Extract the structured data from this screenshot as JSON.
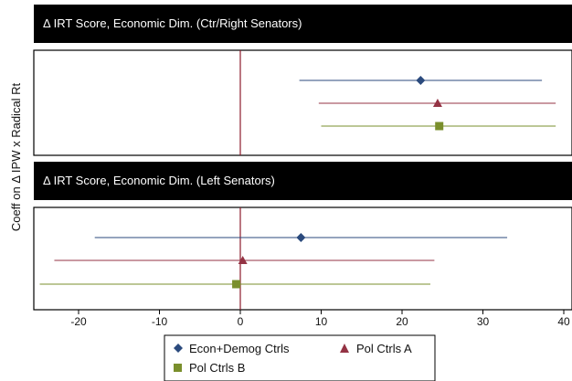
{
  "chart_data": {
    "type": "scatter",
    "ylabel": "Coeff on Δ IPW x Radical Rt",
    "xlim": [
      -25,
      41
    ],
    "xticks": [
      -20,
      -10,
      0,
      10,
      20,
      30,
      40
    ],
    "reference_line_x": 0,
    "grid": false,
    "legend_position": "bottom",
    "colors": {
      "line": "#8b1a2b",
      "frame": "#000000",
      "header": "#000000"
    },
    "legend": [
      {
        "name": "Econ+Demog Ctrls",
        "color": "#2b4a7d",
        "marker": "diamond"
      },
      {
        "name": "Pol Ctrls A",
        "color": "#943344",
        "marker": "triangle"
      },
      {
        "name": "Pol Ctrls B",
        "color": "#7a8f2c",
        "marker": "square"
      }
    ],
    "panels": [
      {
        "title": "Δ IRT Score, Economic Dim.  (Ctr/Right Senators)",
        "series": [
          {
            "name": "Econ+Demog Ctrls",
            "value": 22.3,
            "ci": [
              7.3,
              37.3
            ]
          },
          {
            "name": "Pol Ctrls A",
            "value": 24.4,
            "ci": [
              9.7,
              39.0
            ]
          },
          {
            "name": "Pol Ctrls B",
            "value": 24.6,
            "ci": [
              10.0,
              39.0
            ]
          }
        ]
      },
      {
        "title": "Δ IRT Score, Economic Dim.  (Left Senators)",
        "series": [
          {
            "name": "Econ+Demog Ctrls",
            "value": 7.5,
            "ci": [
              -18.0,
              33.0
            ]
          },
          {
            "name": "Pol Ctrls A",
            "value": 0.3,
            "ci": [
              -23.0,
              24.0
            ]
          },
          {
            "name": "Pol Ctrls B",
            "value": -0.5,
            "ci": [
              -24.8,
              23.5
            ]
          }
        ]
      }
    ]
  }
}
